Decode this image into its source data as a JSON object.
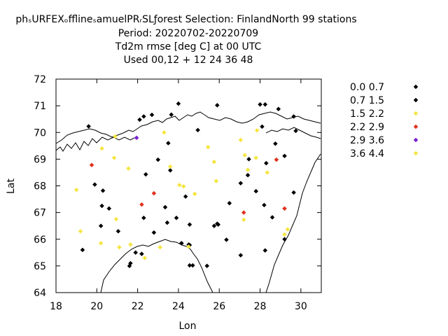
{
  "chart_data": {
    "type": "scatter",
    "title_lines": [
      "phₛURFEXₒfflineₛamuelPRᵣSLƒorest   Selection: FinlandNorth     99 stations",
      "Period: 20220702-20220709",
      "Td2m rmse [deg C] at  00 UTC",
      "Used  00,12  + 12 24 36 48"
    ],
    "xlabel": "Lon",
    "ylabel": "Lat",
    "xlim": [
      18,
      31
    ],
    "ylim": [
      64,
      72
    ],
    "xticks": [
      "18",
      "20",
      "22",
      "24",
      "26",
      "28",
      "30"
    ],
    "yticks": [
      "64",
      "65",
      "66",
      "67",
      "68",
      "69",
      "70",
      "71",
      "72"
    ],
    "grid": false,
    "legend_position": "right",
    "series": [
      {
        "name": "0.0 0.7",
        "color": "#000000",
        "points": [
          [
            24.0,
            71.08
          ],
          [
            22.7,
            70.66
          ],
          [
            25.9,
            71.02
          ],
          [
            28.0,
            71.05
          ],
          [
            28.25,
            71.05
          ],
          [
            29.75,
            70.06
          ],
          [
            28.1,
            70.22
          ],
          [
            23.5,
            69.6
          ],
          [
            24.35,
            67.6
          ],
          [
            25.95,
            66.55
          ],
          [
            25.75,
            66.5
          ],
          [
            26.5,
            67.35
          ],
          [
            27.8,
            67.8
          ],
          [
            28.6,
            66.82
          ],
          [
            29.2,
            66.0
          ],
          [
            28.25,
            65.58
          ],
          [
            27.05,
            65.4
          ],
          [
            26.35,
            65.98
          ],
          [
            25.4,
            65.0
          ],
          [
            24.7,
            65.02
          ],
          [
            24.55,
            65.02
          ],
          [
            24.55,
            65.78
          ],
          [
            24.15,
            65.85
          ],
          [
            22.2,
            65.45
          ],
          [
            21.6,
            65.0
          ],
          [
            20.2,
            66.5
          ],
          [
            21.05,
            66.3
          ]
        ]
      },
      {
        "name": "0.7 1.5",
        "color": "#000000",
        "points": [
          [
            19.6,
            70.23
          ],
          [
            22.3,
            70.6
          ],
          [
            22.1,
            70.48
          ],
          [
            23.65,
            70.67
          ],
          [
            24.95,
            70.09
          ],
          [
            28.9,
            70.88
          ],
          [
            29.65,
            70.6
          ],
          [
            28.75,
            69.58
          ],
          [
            29.2,
            69.12
          ],
          [
            28.3,
            68.85
          ],
          [
            27.4,
            68.4
          ],
          [
            27.45,
            69.0
          ],
          [
            27.05,
            68.1
          ],
          [
            28.2,
            67.28
          ],
          [
            29.65,
            67.75
          ],
          [
            22.4,
            68.43
          ],
          [
            23.0,
            68.98
          ],
          [
            23.6,
            68.58
          ],
          [
            19.9,
            68.05
          ],
          [
            20.3,
            67.82
          ],
          [
            20.25,
            67.25
          ],
          [
            20.6,
            67.15
          ],
          [
            23.35,
            67.2
          ],
          [
            23.9,
            66.8
          ],
          [
            24.55,
            66.55
          ],
          [
            23.45,
            66.62
          ],
          [
            22.3,
            66.8
          ],
          [
            22.8,
            66.25
          ],
          [
            24.15,
            65.85
          ],
          [
            19.3,
            65.6
          ],
          [
            21.65,
            65.1
          ],
          [
            24.5,
            65.8
          ],
          [
            25.9,
            66.58
          ],
          [
            21.9,
            65.5
          ]
        ]
      },
      {
        "name": "1.5 2.2",
        "color": "#f5e642",
        "points": [
          [
            23.3,
            70.0
          ],
          [
            27.85,
            70.08
          ],
          [
            27.05,
            69.72
          ],
          [
            27.25,
            69.15
          ],
          [
            25.45,
            69.45
          ],
          [
            25.75,
            68.9
          ],
          [
            27.8,
            69.05
          ],
          [
            28.35,
            68.5
          ],
          [
            27.4,
            68.6
          ],
          [
            25.85,
            68.18
          ],
          [
            23.6,
            68.72
          ],
          [
            24.05,
            68.03
          ],
          [
            24.25,
            67.98
          ],
          [
            24.8,
            67.7
          ],
          [
            21.55,
            68.65
          ],
          [
            20.85,
            69.05
          ],
          [
            20.25,
            69.4
          ],
          [
            19.0,
            67.85
          ],
          [
            20.95,
            66.75
          ],
          [
            27.2,
            66.73
          ],
          [
            29.35,
            66.37
          ],
          [
            29.2,
            66.18
          ],
          [
            19.2,
            66.3
          ],
          [
            20.2,
            65.85
          ],
          [
            21.1,
            65.7
          ],
          [
            21.65,
            65.8
          ],
          [
            22.35,
            65.3
          ],
          [
            23.1,
            65.7
          ],
          [
            24.5,
            65.72
          ]
        ]
      },
      {
        "name": "2.2 2.9",
        "color": "#e0301e",
        "points": [
          [
            19.75,
            68.78
          ],
          [
            22.2,
            67.3
          ],
          [
            22.8,
            67.72
          ],
          [
            28.8,
            68.98
          ],
          [
            29.2,
            67.15
          ],
          [
            27.2,
            67.0
          ]
        ]
      },
      {
        "name": "2.9 3.6",
        "color": "#7b1fd4",
        "points": [
          [
            21.95,
            69.8
          ]
        ]
      },
      {
        "name": "3.6 4.4",
        "color": "#f5e642",
        "points": [
          [
            20.9,
            69.85
          ]
        ]
      }
    ]
  }
}
